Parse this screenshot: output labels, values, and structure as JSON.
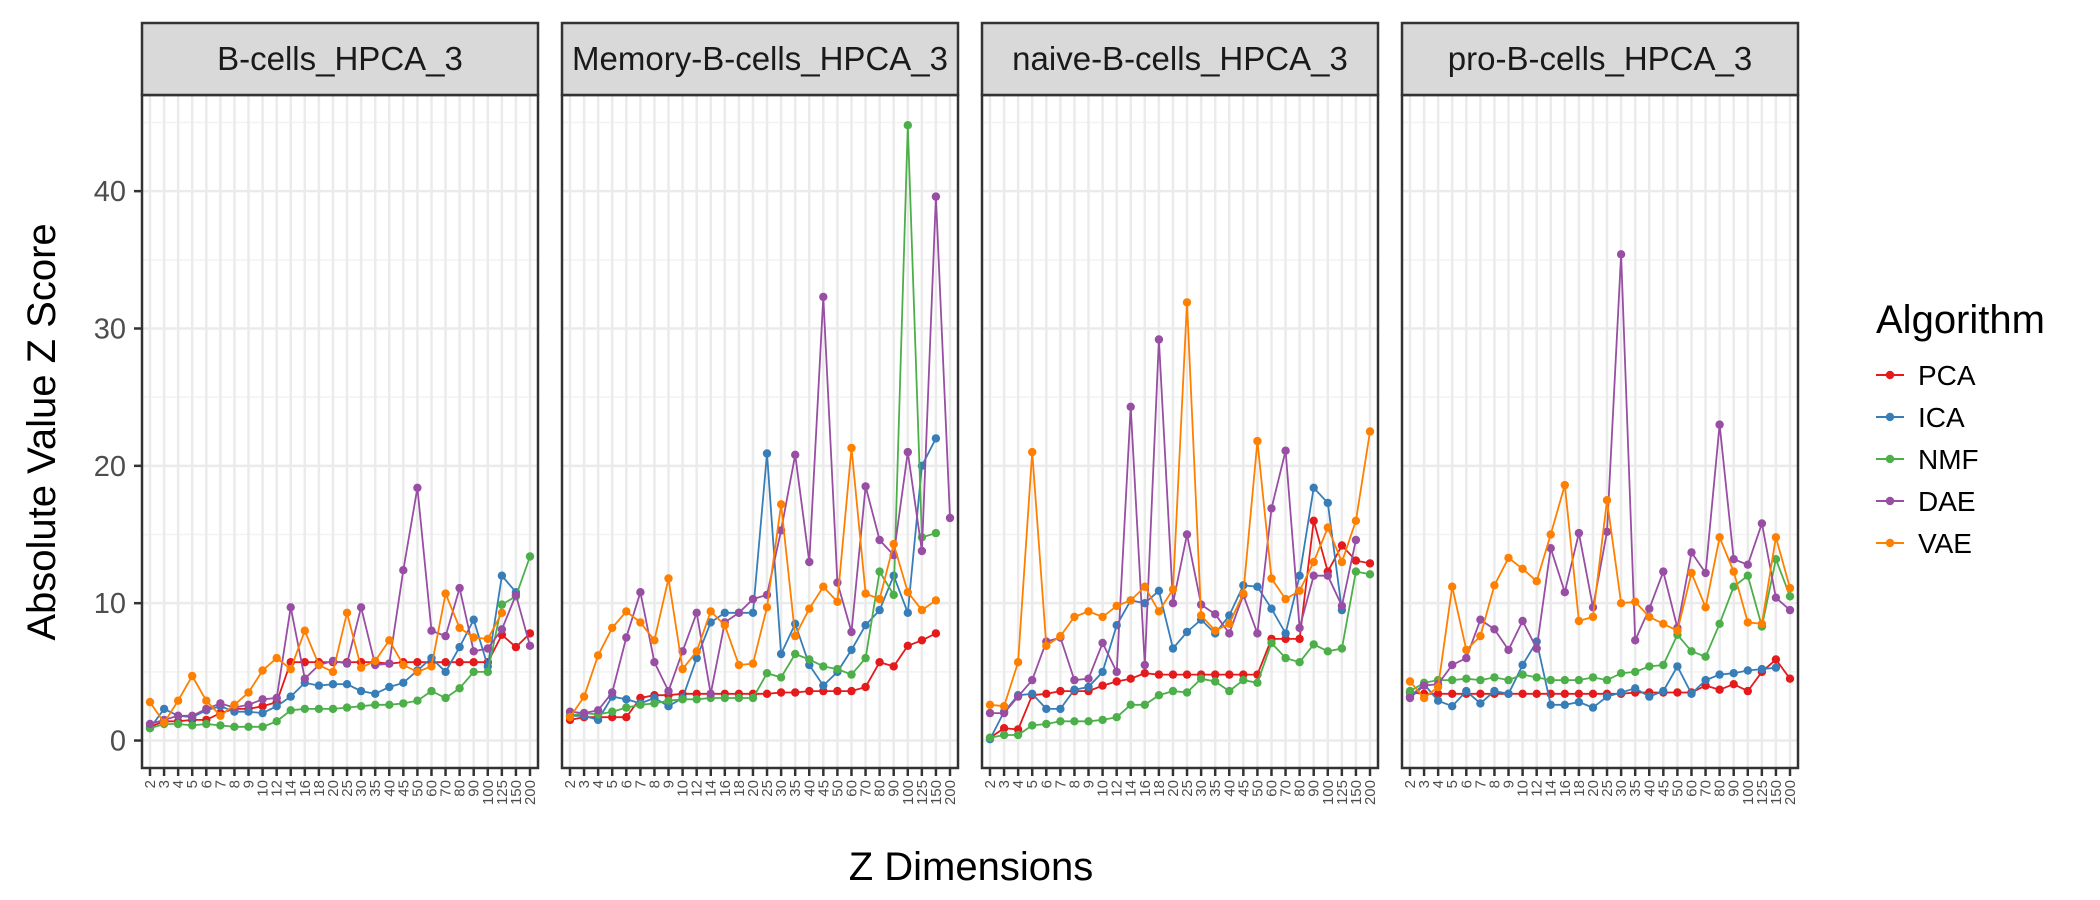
{
  "chart_data": {
    "type": "line",
    "xlabel": "Z Dimensions",
    "ylabel": "Absolute Value Z Score",
    "ylim": [
      -2,
      47
    ],
    "yticks": [
      0,
      10,
      20,
      30,
      40
    ],
    "categories": [
      "2",
      "3",
      "4",
      "5",
      "6",
      "7",
      "8",
      "9",
      "10",
      "12",
      "14",
      "16",
      "18",
      "20",
      "25",
      "30",
      "35",
      "40",
      "45",
      "50",
      "60",
      "70",
      "80",
      "90",
      "100",
      "125",
      "150",
      "200"
    ],
    "grid": true,
    "legend": {
      "title": "Algorithm",
      "position": "right"
    },
    "series_styles": [
      {
        "name": "PCA",
        "color": "#E41A1C"
      },
      {
        "name": "ICA",
        "color": "#377EB8"
      },
      {
        "name": "NMF",
        "color": "#4DAF4A"
      },
      {
        "name": "DAE",
        "color": "#984EA3"
      },
      {
        "name": "VAE",
        "color": "#FF7F00"
      }
    ],
    "panels": [
      {
        "title": "B-cells_HPCA_3",
        "series": [
          {
            "name": "PCA",
            "values": [
              1.0,
              1.4,
              1.4,
              1.5,
              1.5,
              2.0,
              2.3,
              2.3,
              2.5,
              2.8,
              5.7,
              5.7,
              5.7,
              5.7,
              5.7,
              5.7,
              5.7,
              5.6,
              5.7,
              5.7,
              5.7,
              5.7,
              5.7,
              5.7,
              5.7,
              7.7,
              6.8,
              7.8
            ]
          },
          {
            "name": "ICA",
            "values": [
              0.9,
              2.3,
              1.8,
              1.7,
              2.2,
              2.5,
              2.1,
              2.1,
              2.0,
              2.5,
              3.2,
              4.2,
              4.0,
              4.1,
              4.1,
              3.6,
              3.4,
              3.9,
              4.2,
              5.1,
              6.0,
              5.0,
              6.8,
              8.8,
              5.4,
              12.0,
              10.8,
              null
            ]
          },
          {
            "name": "NMF",
            "values": [
              0.9,
              1.2,
              1.2,
              1.1,
              1.2,
              1.1,
              1.0,
              1.0,
              1.0,
              1.4,
              2.2,
              2.3,
              2.3,
              2.3,
              2.4,
              2.5,
              2.6,
              2.6,
              2.7,
              2.9,
              3.6,
              3.1,
              3.8,
              5.0,
              5.0,
              9.9,
              10.5,
              13.4
            ]
          },
          {
            "name": "DAE",
            "values": [
              1.2,
              1.5,
              1.8,
              1.8,
              2.3,
              2.7,
              2.4,
              2.6,
              3.0,
              3.1,
              9.7,
              4.5,
              5.5,
              5.8,
              5.6,
              9.7,
              5.5,
              5.6,
              12.4,
              18.4,
              8.0,
              7.6,
              11.1,
              6.5,
              6.7,
              8.1,
              10.6,
              6.9
            ]
          },
          {
            "name": "VAE",
            "values": [
              2.8,
              1.3,
              2.9,
              4.7,
              2.9,
              1.8,
              2.6,
              3.5,
              5.1,
              6.0,
              5.2,
              8.0,
              5.5,
              5.0,
              9.3,
              5.3,
              5.8,
              7.3,
              5.5,
              5.0,
              5.4,
              10.7,
              8.2,
              7.5,
              7.4,
              9.3,
              null,
              null
            ]
          }
        ]
      },
      {
        "title": "Memory-B-cells_HPCA_3",
        "series": [
          {
            "name": "PCA",
            "values": [
              1.5,
              1.7,
              1.7,
              1.7,
              1.7,
              3.1,
              3.3,
              3.3,
              3.4,
              3.4,
              3.4,
              3.4,
              3.4,
              3.4,
              3.4,
              3.5,
              3.5,
              3.6,
              3.6,
              3.6,
              3.6,
              3.9,
              5.7,
              5.4,
              6.9,
              7.3,
              7.8,
              null
            ]
          },
          {
            "name": "ICA",
            "values": [
              1.8,
              1.8,
              1.5,
              3.2,
              3.0,
              2.7,
              3.1,
              2.5,
              3.1,
              6.0,
              8.6,
              9.3,
              9.3,
              9.3,
              20.9,
              6.3,
              8.5,
              5.5,
              4.0,
              5.0,
              6.6,
              8.4,
              9.5,
              12.0,
              9.3,
              20.0,
              22.0,
              null
            ]
          },
          {
            "name": "NMF",
            "values": [
              1.8,
              2.0,
              1.9,
              2.1,
              2.4,
              2.6,
              2.7,
              2.9,
              3.0,
              3.0,
              3.1,
              3.1,
              3.1,
              3.1,
              4.9,
              4.6,
              6.3,
              5.9,
              5.4,
              5.2,
              4.8,
              6.0,
              12.3,
              10.6,
              44.8,
              14.8,
              15.1,
              null
            ]
          },
          {
            "name": "DAE",
            "values": [
              2.1,
              2.0,
              2.2,
              3.5,
              7.5,
              10.8,
              5.7,
              3.6,
              6.5,
              9.3,
              3.4,
              8.6,
              9.3,
              10.3,
              10.6,
              15.3,
              20.8,
              13.0,
              32.3,
              11.5,
              7.9,
              18.5,
              14.6,
              13.5,
              21.0,
              13.8,
              39.6,
              16.2
            ]
          },
          {
            "name": "VAE",
            "values": [
              1.7,
              3.2,
              6.2,
              8.2,
              9.4,
              8.6,
              7.3,
              11.8,
              5.2,
              6.5,
              9.4,
              8.4,
              5.5,
              5.6,
              9.7,
              17.2,
              7.6,
              9.6,
              11.2,
              10.1,
              21.3,
              10.7,
              10.3,
              14.3,
              10.8,
              9.5,
              10.2,
              null
            ]
          }
        ]
      },
      {
        "title": "naive-B-cells_HPCA_3",
        "series": [
          {
            "name": "PCA",
            "values": [
              0.2,
              0.9,
              0.8,
              3.3,
              3.4,
              3.6,
              3.6,
              3.6,
              4.0,
              4.3,
              4.5,
              4.9,
              4.8,
              4.8,
              4.8,
              4.8,
              4.8,
              4.8,
              4.8,
              4.8,
              7.4,
              7.4,
              7.4,
              16.0,
              12.3,
              14.2,
              13.1,
              12.9
            ]
          },
          {
            "name": "ICA",
            "values": [
              0.1,
              2.1,
              3.3,
              3.4,
              2.3,
              2.3,
              3.7,
              3.9,
              5.0,
              8.4,
              10.2,
              10.0,
              10.9,
              6.7,
              7.9,
              8.8,
              7.8,
              9.1,
              11.3,
              11.2,
              9.6,
              7.8,
              12.0,
              18.4,
              17.3,
              9.5,
              null,
              null
            ]
          },
          {
            "name": "NMF",
            "values": [
              0.2,
              0.4,
              0.4,
              1.1,
              1.2,
              1.4,
              1.4,
              1.4,
              1.5,
              1.7,
              2.6,
              2.6,
              3.3,
              3.6,
              3.5,
              4.5,
              4.3,
              3.6,
              4.4,
              4.2,
              7.1,
              6.0,
              5.7,
              7.0,
              6.5,
              6.7,
              12.3,
              12.1
            ]
          },
          {
            "name": "DAE",
            "values": [
              2.0,
              2.0,
              3.2,
              4.4,
              7.2,
              7.5,
              4.4,
              4.5,
              7.1,
              5.0,
              24.3,
              5.5,
              29.2,
              10.0,
              15.0,
              9.9,
              9.2,
              7.8,
              10.6,
              7.8,
              16.9,
              21.1,
              8.2,
              12.0,
              12.0,
              9.8,
              14.6,
              null
            ]
          },
          {
            "name": "VAE",
            "values": [
              2.6,
              2.5,
              5.7,
              21.0,
              6.9,
              7.6,
              9.0,
              9.4,
              9.0,
              9.8,
              10.2,
              11.2,
              9.4,
              11.0,
              31.9,
              9.1,
              8.0,
              8.5,
              10.7,
              21.8,
              11.8,
              10.3,
              10.9,
              13.0,
              15.5,
              13.0,
              16.0,
              22.5
            ]
          }
        ]
      },
      {
        "title": "pro-B-cells_HPCA_3",
        "series": [
          {
            "name": "PCA",
            "values": [
              3.5,
              3.4,
              3.4,
              3.4,
              3.4,
              3.4,
              3.4,
              3.4,
              3.4,
              3.4,
              3.4,
              3.4,
              3.4,
              3.4,
              3.4,
              3.4,
              3.5,
              3.5,
              3.5,
              3.5,
              3.5,
              4.0,
              3.7,
              4.1,
              3.6,
              5.0,
              5.9,
              4.5
            ]
          },
          {
            "name": "ICA",
            "values": [
              3.2,
              4.1,
              2.9,
              2.5,
              3.6,
              2.7,
              3.6,
              3.4,
              5.5,
              7.2,
              2.6,
              2.6,
              2.8,
              2.4,
              3.2,
              3.5,
              3.8,
              3.2,
              3.6,
              5.4,
              3.4,
              4.4,
              4.8,
              4.9,
              5.1,
              5.2,
              5.3,
              null
            ]
          },
          {
            "name": "NMF",
            "values": [
              3.6,
              4.2,
              4.4,
              4.4,
              4.5,
              4.4,
              4.6,
              4.4,
              4.8,
              4.6,
              4.4,
              4.4,
              4.4,
              4.6,
              4.4,
              4.9,
              5.0,
              5.4,
              5.5,
              7.7,
              6.5,
              6.1,
              8.5,
              11.2,
              12.0,
              8.3,
              13.2,
              10.5
            ]
          },
          {
            "name": "DAE",
            "values": [
              3.1,
              4.0,
              4.1,
              5.5,
              6.0,
              8.8,
              8.1,
              6.6,
              8.7,
              6.7,
              14.0,
              10.8,
              15.1,
              9.7,
              15.2,
              35.4,
              7.3,
              9.6,
              12.3,
              8.2,
              13.7,
              12.2,
              23.0,
              13.2,
              12.8,
              15.8,
              10.4,
              9.5
            ]
          },
          {
            "name": "VAE",
            "values": [
              4.3,
              3.1,
              3.9,
              11.2,
              6.6,
              7.6,
              11.3,
              13.3,
              12.5,
              11.6,
              15.0,
              18.6,
              8.7,
              9.0,
              17.5,
              10.0,
              10.1,
              9.0,
              8.5,
              8.0,
              12.2,
              9.7,
              14.8,
              12.3,
              8.6,
              8.5,
              14.8,
              11.1
            ]
          }
        ]
      }
    ]
  }
}
